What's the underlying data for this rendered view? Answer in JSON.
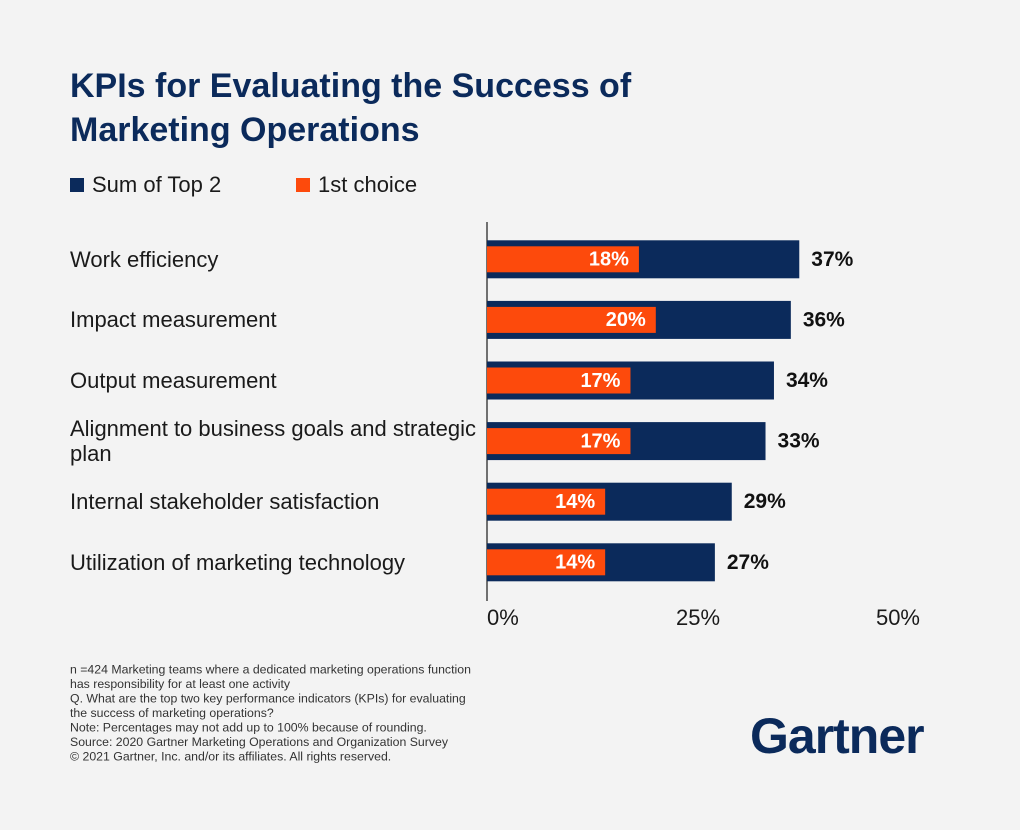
{
  "chart_data": {
    "type": "bar",
    "orientation": "horizontal",
    "overlap": true,
    "title": [
      "KPIs for Evaluating the Success of",
      "Marketing Operations"
    ],
    "categories": [
      "Work efficiency",
      "Impact measurement",
      "Output measurement",
      "Alignment to business goals and strategic plan",
      "Internal stakeholder satisfaction",
      "Utilization of marketing technology"
    ],
    "series": [
      {
        "name": "Sum of Top 2",
        "color": "#0b2a5b",
        "values": [
          37,
          36,
          34,
          33,
          29,
          27
        ],
        "value_labels": [
          "37%",
          "36%",
          "34%",
          "33%",
          "29%",
          "27%"
        ]
      },
      {
        "name": "1st choice",
        "color": "#fd4a0c",
        "values": [
          18,
          20,
          17,
          17,
          14,
          14
        ],
        "value_labels": [
          "18%",
          "20%",
          "17%",
          "17%",
          "14%",
          "14%"
        ]
      }
    ],
    "xlim": [
      0,
      50
    ],
    "xticks": [
      {
        "value": 0,
        "label": "0%"
      },
      {
        "value": 25,
        "label": "25%"
      },
      {
        "value": 50,
        "label": "50%"
      }
    ],
    "grid": false,
    "notes": [
      "n =424 Marketing teams where a dedicated marketing operations function",
      "has responsibility for at least one activity",
      "Q. What are the top two key performance indicators (KPIs) for evaluating",
      "the success of marketing operations?",
      "Note: Percentages may not add up to 100% because of rounding.",
      "Source: 2020 Gartner Marketing Operations and Organization Survey",
      "© 2021 Gartner, Inc. and/or its affiliates. All rights reserved."
    ],
    "logo": "Gartner"
  }
}
